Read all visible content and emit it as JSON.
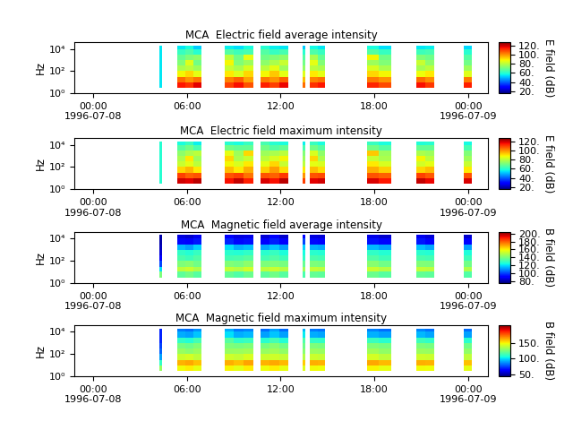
{
  "chart_data": [
    {
      "type": "heatmap",
      "title": "MCA  Electric field average intensity",
      "y_label": "Hz",
      "log": "y",
      "xlim": [
        -1.2,
        25.3
      ],
      "ylim": [
        1,
        40000
      ],
      "xticks": [
        {
          "value": 0,
          "label": "00:00\n1996-07-08"
        },
        {
          "value": 6,
          "label": "06:00"
        },
        {
          "value": 12,
          "label": "12:00"
        },
        {
          "value": 18,
          "label": "18:00"
        },
        {
          "value": 24,
          "label": "00:00\n1996-07-09"
        }
      ],
      "yticks": [
        {
          "value": 1,
          "label": "10⁰"
        },
        {
          "value": 100,
          "label": "10²"
        },
        {
          "value": 10000,
          "label": "10⁴"
        }
      ],
      "x_edges": [
        4.23,
        4.4,
        5.37,
        5.9,
        6.4,
        6.91,
        8.4,
        9.0,
        9.6,
        10.23,
        10.69,
        11.3,
        11.9,
        12.51,
        13.43,
        13.6,
        13.89,
        14.4,
        14.86,
        17.54,
        18.3,
        19.09,
        20.69,
        21.25,
        21.83,
        23.71,
        24.23
      ],
      "y_edges": [
        3,
        10,
        30,
        100,
        300,
        1000,
        3000,
        10000,
        20000
      ],
      "cells": [
        [
          55,
          55,
          55,
          55,
          55,
          55,
          55,
          55
        ],
        null,
        [
          115,
          105,
          88,
          78,
          72,
          68,
          62,
          55
        ],
        [
          112,
          100,
          92,
          80,
          85,
          72,
          65,
          58
        ],
        [
          118,
          104,
          86,
          76,
          70,
          74,
          60,
          52
        ],
        null,
        [
          110,
          102,
          90,
          82,
          88,
          80,
          66,
          56
        ],
        [
          116,
          106,
          85,
          78,
          72,
          70,
          63,
          54
        ],
        [
          108,
          98,
          92,
          84,
          76,
          86,
          64,
          58
        ],
        null,
        [
          114,
          103,
          88,
          80,
          74,
          70,
          66,
          60
        ],
        [
          110,
          100,
          94,
          86,
          78,
          72,
          62,
          56
        ],
        [
          117,
          106,
          86,
          76,
          82,
          74,
          64,
          55
        ],
        null,
        [
          105,
          95,
          85,
          75,
          70,
          66,
          60,
          52
        ],
        null,
        [
          112,
          102,
          90,
          80,
          86,
          78,
          65,
          57
        ],
        [
          115,
          104,
          86,
          78,
          72,
          68,
          62,
          55
        ],
        null,
        [
          113,
          103,
          92,
          84,
          76,
          88,
          66,
          58
        ],
        [
          109,
          100,
          88,
          78,
          72,
          70,
          62,
          54
        ],
        null,
        [
          116,
          105,
          87,
          77,
          82,
          72,
          63,
          55
        ],
        [
          111,
          101,
          90,
          80,
          74,
          70,
          64,
          56
        ],
        null,
        [
          114,
          103,
          85,
          76,
          70,
          66,
          60,
          53
        ]
      ],
      "colorbar": {
        "label": "E field (dB)",
        "range": [
          15,
          128
        ],
        "ticks": [
          {
            "value": 20,
            "label": "20."
          },
          {
            "value": 40,
            "label": "40."
          },
          {
            "value": 60,
            "label": "60."
          },
          {
            "value": 80,
            "label": "80."
          },
          {
            "value": 100,
            "label": "100."
          },
          {
            "value": 120,
            "label": "120."
          }
        ]
      }
    },
    {
      "type": "heatmap",
      "title": "MCA  Electric field maximum intensity",
      "y_label": "Hz",
      "log": "y",
      "xlim": [
        -1.2,
        25.3
      ],
      "ylim": [
        1,
        40000
      ],
      "xticks": [
        {
          "value": 0,
          "label": "00:00\n1996-07-08"
        },
        {
          "value": 6,
          "label": "06:00"
        },
        {
          "value": 12,
          "label": "12:00"
        },
        {
          "value": 18,
          "label": "18:00"
        },
        {
          "value": 24,
          "label": "00:00\n1996-07-09"
        }
      ],
      "yticks": [
        {
          "value": 1,
          "label": "10⁰"
        },
        {
          "value": 100,
          "label": "10²"
        },
        {
          "value": 10000,
          "label": "10⁴"
        }
      ],
      "x_edges": [
        4.23,
        4.4,
        5.37,
        5.9,
        6.4,
        6.91,
        8.4,
        9.0,
        9.6,
        10.23,
        10.69,
        11.3,
        11.9,
        12.51,
        13.43,
        13.6,
        13.89,
        14.4,
        14.86,
        17.54,
        18.3,
        19.09,
        20.69,
        21.25,
        21.83,
        23.71,
        24.23
      ],
      "y_edges": [
        3,
        10,
        30,
        100,
        300,
        1000,
        3000,
        10000,
        20000
      ],
      "cells": [
        [
          60,
          60,
          60,
          60,
          60,
          60,
          60,
          60
        ],
        null,
        [
          120,
          110,
          92,
          82,
          78,
          74,
          66,
          58
        ],
        [
          118,
          106,
          96,
          86,
          90,
          78,
          70,
          62
        ],
        [
          122,
          108,
          90,
          80,
          76,
          80,
          64,
          56
        ],
        null,
        [
          116,
          108,
          95,
          88,
          92,
          86,
          70,
          60
        ],
        [
          121,
          110,
          90,
          84,
          78,
          76,
          68,
          58
        ],
        [
          114,
          104,
          97,
          90,
          82,
          92,
          68,
          62
        ],
        null,
        [
          119,
          108,
          93,
          86,
          80,
          76,
          70,
          64
        ],
        [
          116,
          106,
          99,
          92,
          84,
          78,
          66,
          60
        ],
        [
          122,
          111,
          91,
          82,
          88,
          80,
          68,
          58
        ],
        null,
        [
          110,
          100,
          90,
          80,
          76,
          72,
          64,
          56
        ],
        null,
        [
          118,
          108,
          95,
          86,
          92,
          84,
          70,
          62
        ],
        [
          120,
          109,
          91,
          84,
          78,
          74,
          66,
          58
        ],
        null,
        [
          119,
          108,
          97,
          90,
          82,
          94,
          70,
          62
        ],
        [
          115,
          106,
          93,
          84,
          78,
          76,
          66,
          58
        ],
        null,
        [
          121,
          110,
          92,
          83,
          88,
          78,
          68,
          59
        ],
        [
          117,
          107,
          95,
          86,
          80,
          76,
          68,
          60
        ],
        null,
        [
          119,
          108,
          90,
          82,
          76,
          72,
          64,
          57
        ]
      ],
      "colorbar": {
        "label": "E field (dB)",
        "range": [
          15,
          128
        ],
        "ticks": [
          {
            "value": 20,
            "label": "20."
          },
          {
            "value": 40,
            "label": "40."
          },
          {
            "value": 60,
            "label": "60."
          },
          {
            "value": 80,
            "label": "80."
          },
          {
            "value": 100,
            "label": "100."
          },
          {
            "value": 120,
            "label": "120."
          }
        ]
      }
    },
    {
      "type": "heatmap",
      "title": "MCA  Magnetic field average intensity",
      "y_label": "Hz",
      "log": "y",
      "xlim": [
        -1.2,
        25.3
      ],
      "ylim": [
        1,
        40000
      ],
      "xticks": [
        {
          "value": 0,
          "label": "00:00\n1996-07-08"
        },
        {
          "value": 6,
          "label": "06:00"
        },
        {
          "value": 12,
          "label": "12:00"
        },
        {
          "value": 18,
          "label": "18:00"
        },
        {
          "value": 24,
          "label": "00:00\n1996-07-09"
        }
      ],
      "yticks": [
        {
          "value": 1,
          "label": "10⁰"
        },
        {
          "value": 100,
          "label": "10²"
        },
        {
          "value": 10000,
          "label": "10⁴"
        }
      ],
      "x_edges": [
        4.23,
        4.4,
        5.37,
        5.9,
        6.4,
        6.91,
        8.4,
        9.0,
        9.6,
        10.23,
        10.69,
        11.3,
        11.9,
        12.51,
        13.43,
        13.6,
        13.89,
        14.4,
        14.86,
        17.54,
        18.3,
        19.09,
        20.69,
        21.25,
        21.83,
        23.71,
        24.23
      ],
      "y_edges": [
        3,
        10,
        30,
        100,
        300,
        1000,
        3000,
        10000,
        20000
      ],
      "cells": [
        [
          140,
          120,
          100,
          90,
          85,
          82,
          80,
          80
        ],
        null,
        [
          135,
          150,
          140,
          132,
          128,
          115,
          92,
          86
        ],
        [
          138,
          152,
          142,
          130,
          126,
          112,
          90,
          84
        ],
        [
          134,
          148,
          138,
          133,
          129,
          118,
          94,
          88
        ],
        null,
        [
          136,
          151,
          141,
          131,
          127,
          120,
          96,
          90
        ],
        [
          133,
          149,
          139,
          132,
          126,
          114,
          92,
          86
        ],
        [
          137,
          153,
          143,
          134,
          128,
          116,
          93,
          87
        ],
        null,
        [
          135,
          150,
          140,
          131,
          127,
          113,
          91,
          85
        ],
        [
          138,
          152,
          141,
          133,
          129,
          117,
          95,
          90
        ],
        [
          134,
          149,
          139,
          130,
          125,
          112,
          90,
          84
        ],
        null,
        [
          132,
          146,
          136,
          128,
          124,
          118,
          100,
          92
        ],
        null,
        [
          136,
          151,
          140,
          132,
          127,
          114,
          92,
          86
        ],
        [
          135,
          150,
          139,
          131,
          126,
          113,
          91,
          85
        ],
        null,
        [
          137,
          152,
          142,
          133,
          128,
          115,
          93,
          87
        ],
        [
          134,
          149,
          138,
          130,
          126,
          112,
          90,
          84
        ],
        null,
        [
          136,
          151,
          141,
          132,
          127,
          116,
          94,
          88
        ],
        [
          135,
          150,
          140,
          131,
          126,
          113,
          91,
          85
        ],
        null,
        [
          133,
          148,
          138,
          130,
          125,
          112,
          90,
          84
        ]
      ],
      "colorbar": {
        "label": "B field (dB)",
        "range": [
          75,
          205
        ],
        "ticks": [
          {
            "value": 80,
            "label": "80."
          },
          {
            "value": 100,
            "label": "100."
          },
          {
            "value": 120,
            "label": "120."
          },
          {
            "value": 140,
            "label": "140."
          },
          {
            "value": 160,
            "label": "160."
          },
          {
            "value": 180,
            "label": "180."
          },
          {
            "value": 200,
            "label": "200."
          }
        ]
      }
    },
    {
      "type": "heatmap",
      "title": "MCA  Magnetic field maximum intensity",
      "y_label": "Hz",
      "log": "y",
      "xlim": [
        -1.2,
        25.3
      ],
      "ylim": [
        1,
        40000
      ],
      "xticks": [
        {
          "value": 0,
          "label": "00:00\n1996-07-08"
        },
        {
          "value": 6,
          "label": "06:00"
        },
        {
          "value": 12,
          "label": "12:00"
        },
        {
          "value": 18,
          "label": "18:00"
        },
        {
          "value": 24,
          "label": "00:00\n1996-07-09"
        }
      ],
      "yticks": [
        {
          "value": 1,
          "label": "10⁰"
        },
        {
          "value": 100,
          "label": "10²"
        },
        {
          "value": 10000,
          "label": "10⁴"
        }
      ],
      "x_edges": [
        4.23,
        4.4,
        5.37,
        5.9,
        6.4,
        6.91,
        8.4,
        9.0,
        9.6,
        10.23,
        10.69,
        11.3,
        11.9,
        12.51,
        13.43,
        13.6,
        13.89,
        14.4,
        14.86,
        17.54,
        18.3,
        19.09,
        20.69,
        21.25,
        21.83,
        23.71,
        24.23
      ],
      "y_edges": [
        3,
        10,
        30,
        100,
        300,
        1000,
        3000,
        10000,
        20000
      ],
      "cells": [
        [
          130,
          110,
          90,
          80,
          75,
          70,
          70,
          70
        ],
        null,
        [
          148,
          160,
          140,
          130,
          124,
          110,
          92,
          84
        ],
        [
          150,
          162,
          142,
          128,
          122,
          108,
          90,
          82
        ],
        [
          146,
          158,
          138,
          131,
          126,
          114,
          96,
          88
        ],
        null,
        [
          149,
          161,
          141,
          130,
          125,
          118,
          100,
          92
        ],
        [
          145,
          158,
          139,
          131,
          124,
          110,
          92,
          84
        ],
        [
          150,
          163,
          143,
          132,
          126,
          112,
          94,
          86
        ],
        null,
        [
          147,
          160,
          140,
          130,
          124,
          109,
          90,
          82
        ],
        [
          150,
          162,
          141,
          132,
          127,
          114,
          96,
          90
        ],
        [
          146,
          159,
          139,
          129,
          123,
          108,
          90,
          82
        ],
        null,
        [
          144,
          156,
          136,
          127,
          122,
          116,
          102,
          94
        ],
        null,
        [
          148,
          161,
          140,
          131,
          125,
          111,
          92,
          84
        ],
        [
          147,
          160,
          139,
          130,
          124,
          110,
          91,
          83
        ],
        null,
        [
          149,
          162,
          142,
          132,
          126,
          112,
          93,
          85
        ],
        [
          146,
          159,
          138,
          129,
          124,
          109,
          90,
          82
        ],
        null,
        [
          148,
          161,
          141,
          131,
          125,
          113,
          94,
          86
        ],
        [
          147,
          160,
          140,
          130,
          124,
          110,
          91,
          83
        ],
        null,
        [
          145,
          158,
          138,
          129,
          123,
          109,
          90,
          82
        ]
      ],
      "colorbar": {
        "label": "B field (dB)",
        "range": [
          45,
          205
        ],
        "ticks": [
          {
            "value": 50,
            "label": "50."
          },
          {
            "value": 100,
            "label": "100."
          },
          {
            "value": 150,
            "label": "150."
          }
        ]
      }
    }
  ]
}
